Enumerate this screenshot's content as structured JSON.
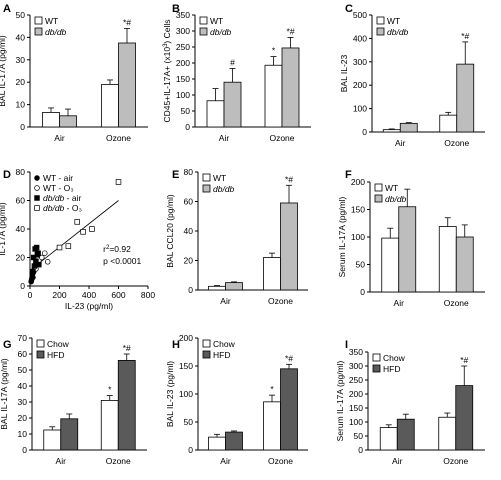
{
  "colors": {
    "wt": "#ffffff",
    "dbdb": "#bdbdbd",
    "chow": "#ffffff",
    "hfd": "#5a5a5a",
    "stroke": "#000000"
  },
  "chart_data": [
    {
      "id": "A",
      "panel_label": "A",
      "type": "bar",
      "categories": [
        "Air",
        "Ozone"
      ],
      "ylabel": "BAL IL-17A (pg/ml)",
      "ylim": [
        0,
        50
      ],
      "yticks": [
        0,
        10,
        20,
        30,
        40,
        50
      ],
      "legend": {
        "position": "top-left",
        "entries": [
          "WT",
          "db/db"
        ]
      },
      "series": [
        {
          "name": "WT",
          "color_key": "wt",
          "values": [
            6.5,
            19
          ],
          "errors": [
            2,
            2
          ],
          "marks": [
            "",
            ""
          ]
        },
        {
          "name": "db/db",
          "color_key": "dbdb",
          "values": [
            5,
            37.5
          ],
          "errors": [
            3,
            6.5
          ],
          "marks": [
            "",
            "*#"
          ]
        }
      ]
    },
    {
      "id": "B",
      "panel_label": "B",
      "type": "bar",
      "categories": [
        "Air",
        "Ozone"
      ],
      "ylabel": "CD45+IL-17A+ (x10³) Cells",
      "ylim": [
        0,
        350
      ],
      "yticks": [
        0,
        50,
        100,
        150,
        200,
        250,
        300,
        350
      ],
      "legend": {
        "position": "top-left",
        "entries": [
          "WT",
          "db/db"
        ]
      },
      "series": [
        {
          "name": "WT",
          "color_key": "wt",
          "values": [
            82,
            193
          ],
          "errors": [
            38,
            27
          ],
          "marks": [
            "",
            "*"
          ]
        },
        {
          "name": "db/db",
          "color_key": "dbdb",
          "values": [
            140,
            247
          ],
          "errors": [
            43,
            33
          ],
          "marks": [
            "#",
            "*#"
          ]
        }
      ]
    },
    {
      "id": "C",
      "panel_label": "C",
      "type": "bar",
      "categories": [
        "Air",
        "Ozone"
      ],
      "ylabel": "BAL IL-23",
      "ylim": [
        0,
        500
      ],
      "yticks": [
        0,
        100,
        200,
        300,
        400,
        500
      ],
      "legend": {
        "position": "top-left",
        "entries": [
          "WT",
          "db/db"
        ]
      },
      "series": [
        {
          "name": "WT",
          "color_key": "wt",
          "values": [
            10,
            72
          ],
          "errors": [
            3,
            12
          ],
          "marks": [
            "",
            ""
          ]
        },
        {
          "name": "db/db",
          "color_key": "dbdb",
          "values": [
            37,
            290
          ],
          "errors": [
            3,
            95
          ],
          "marks": [
            "",
            "*#"
          ]
        }
      ]
    },
    {
      "id": "D",
      "panel_label": "D",
      "type": "scatter",
      "xlabel": "IL-23 (pg/ml)",
      "ylabel": "IL-17A (pg/ml)",
      "xlim": [
        0,
        800
      ],
      "ylim": [
        0,
        80
      ],
      "xticks": [
        0,
        200,
        400,
        600,
        800
      ],
      "yticks": [
        0,
        20,
        40,
        60,
        80
      ],
      "legend": {
        "position": "top-left",
        "entries": [
          "WT - air",
          "WT - O₃",
          "db/db - air",
          "db/db - O₃"
        ]
      },
      "annotations": [
        "r²=0.92",
        "p <0.0001"
      ],
      "regression": {
        "x": [
          0,
          600
        ],
        "y": [
          11,
          60
        ]
      },
      "series": [
        {
          "name": "WT - air",
          "marker": "filled-circle",
          "x": [
            8,
            12,
            15,
            20,
            25,
            30,
            18,
            10
          ],
          "y": [
            3,
            5,
            8,
            6,
            10,
            12,
            9,
            4
          ]
        },
        {
          "name": "WT - O₃",
          "marker": "open-circle",
          "x": [
            40,
            60,
            80,
            100,
            120
          ],
          "y": [
            12,
            18,
            20,
            23,
            17
          ]
        },
        {
          "name": "db/db - air",
          "marker": "filled-square",
          "x": [
            20,
            30,
            40,
            50,
            35,
            25,
            15,
            45,
            55,
            60
          ],
          "y": [
            10,
            14,
            17,
            22,
            26,
            20,
            8,
            27,
            23,
            15
          ]
        },
        {
          "name": "db/db - O₃",
          "marker": "open-square",
          "x": [
            200,
            260,
            320,
            360,
            420,
            600
          ],
          "y": [
            27,
            28,
            45,
            38,
            40,
            73
          ]
        }
      ]
    },
    {
      "id": "E",
      "panel_label": "E",
      "type": "bar",
      "categories": [
        "Air",
        "Ozone"
      ],
      "ylabel": "BAL CCL20 (pg/ml)",
      "ylim": [
        0,
        80
      ],
      "yticks": [
        0,
        20,
        40,
        60,
        80
      ],
      "legend": {
        "position": "top-left",
        "entries": [
          "WT",
          "db/db"
        ]
      },
      "series": [
        {
          "name": "WT",
          "color_key": "wt",
          "values": [
            2.5,
            22
          ],
          "errors": [
            0.5,
            3
          ],
          "marks": [
            "",
            ""
          ]
        },
        {
          "name": "db/db",
          "color_key": "dbdb",
          "values": [
            5,
            59
          ],
          "errors": [
            0.5,
            12
          ],
          "marks": [
            "",
            "*#"
          ]
        }
      ]
    },
    {
      "id": "F",
      "panel_label": "F",
      "type": "bar",
      "categories": [
        "Air",
        "Ozone"
      ],
      "ylabel": "Serum IL-17A (pg/ml)",
      "ylim": [
        0,
        200
      ],
      "yticks": [
        0,
        50,
        100,
        150,
        200
      ],
      "legend": {
        "position": "top-left",
        "entries": [
          "WT",
          "db/db"
        ]
      },
      "series": [
        {
          "name": "WT",
          "color_key": "wt",
          "values": [
            98,
            119
          ],
          "errors": [
            18,
            16
          ],
          "marks": [
            "",
            ""
          ]
        },
        {
          "name": "db/db",
          "color_key": "dbdb",
          "values": [
            155,
            100
          ],
          "errors": [
            32,
            22
          ],
          "marks": [
            "",
            ""
          ]
        }
      ]
    },
    {
      "id": "G",
      "panel_label": "G",
      "type": "bar",
      "categories": [
        "Air",
        "Ozone"
      ],
      "ylabel": "BAL IL-17A (pg/ml)",
      "ylim": [
        0,
        70
      ],
      "yticks": [
        0,
        10,
        20,
        30,
        40,
        50,
        60,
        70
      ],
      "legend": {
        "position": "top-left",
        "entries": [
          "Chow",
          "HFD"
        ]
      },
      "series": [
        {
          "name": "Chow",
          "color_key": "chow",
          "values": [
            12.5,
            31
          ],
          "errors": [
            2,
            3
          ],
          "marks": [
            "",
            "*"
          ]
        },
        {
          "name": "HFD",
          "color_key": "hfd",
          "values": [
            19.5,
            56
          ],
          "errors": [
            3,
            4
          ],
          "marks": [
            "",
            "*#"
          ]
        }
      ]
    },
    {
      "id": "H",
      "panel_label": "H",
      "type": "bar",
      "categories": [
        "Air",
        "Ozone"
      ],
      "ylabel": "BAL IL-23 (pg/ml)",
      "ylim": [
        0,
        200
      ],
      "yticks": [
        0,
        50,
        100,
        150,
        200
      ],
      "legend": {
        "position": "top-left",
        "entries": [
          "Chow",
          "HFD"
        ]
      },
      "series": [
        {
          "name": "Chow",
          "color_key": "chow",
          "values": [
            23,
            86
          ],
          "errors": [
            5,
            12
          ],
          "marks": [
            "",
            "*"
          ]
        },
        {
          "name": "HFD",
          "color_key": "hfd",
          "values": [
            32,
            145
          ],
          "errors": [
            2,
            8
          ],
          "marks": [
            "",
            "*#"
          ]
        }
      ]
    },
    {
      "id": "I",
      "panel_label": "I",
      "type": "bar",
      "categories": [
        "Air",
        "Ozone"
      ],
      "ylabel": "Serum IL-17A (pg/ml)",
      "ylim": [
        0,
        350
      ],
      "yticks": [
        0,
        50,
        100,
        150,
        200,
        250,
        300,
        350
      ],
      "legend": {
        "position": "top-left",
        "entries": [
          "Chow",
          "HFD"
        ]
      },
      "series": [
        {
          "name": "Chow",
          "color_key": "chow",
          "values": [
            80,
            117
          ],
          "errors": [
            10,
            15
          ],
          "marks": [
            "",
            ""
          ]
        },
        {
          "name": "HFD",
          "color_key": "hfd",
          "values": [
            110,
            230
          ],
          "errors": [
            18,
            70
          ],
          "marks": [
            "",
            "*#"
          ]
        }
      ]
    }
  ]
}
